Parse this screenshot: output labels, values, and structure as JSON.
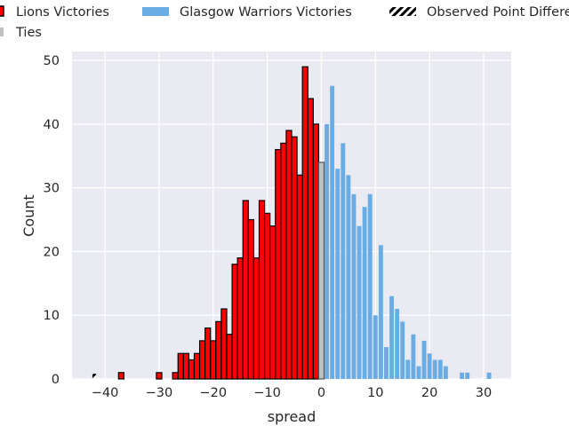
{
  "chart_data": {
    "type": "bar",
    "title": "",
    "xlabel": "spread",
    "ylabel": "Count",
    "xlim": [
      -46.1,
      35.1
    ],
    "ylim": [
      0,
      51.4
    ],
    "xticks": [
      -40,
      -30,
      -20,
      -10,
      0,
      10,
      20,
      30
    ],
    "yticks": [
      0,
      10,
      20,
      30,
      40,
      50
    ],
    "grid": true,
    "legend_placement": "top",
    "series": [
      {
        "name": "Lions Victories",
        "color": "#ff0000",
        "edge": "#000000",
        "x": [
          -37,
          -30,
          -27,
          -26,
          -25,
          -24,
          -23,
          -22,
          -21,
          -20,
          -19,
          -18,
          -17,
          -16,
          -15,
          -14,
          -13,
          -12,
          -11,
          -10,
          -9,
          -8,
          -7,
          -6,
          -5,
          -4,
          -3,
          -2,
          -1
        ],
        "values": [
          1,
          1,
          1,
          4,
          4,
          3,
          4,
          6,
          8,
          6,
          9,
          11,
          7,
          18,
          19,
          28,
          25,
          19,
          28,
          26,
          24,
          36,
          37,
          39,
          38,
          32,
          49,
          44,
          40
        ]
      },
      {
        "name": "Glasgow Warriors Victories",
        "color": "#6aade4",
        "edge": null,
        "x": [
          1,
          2,
          3,
          4,
          5,
          6,
          7,
          8,
          9,
          10,
          11,
          12,
          13,
          14,
          15,
          16,
          17,
          18,
          19,
          20,
          21,
          22,
          23,
          26,
          27,
          31
        ],
        "values": [
          40,
          46,
          33,
          37,
          32,
          29,
          24,
          27,
          29,
          10,
          21,
          5,
          13,
          11,
          9,
          3,
          7,
          2,
          6,
          4,
          3,
          3,
          2,
          1,
          1,
          1
        ]
      },
      {
        "name": "Ties",
        "color": "#c0c0c0",
        "edge": "#555555",
        "x": [
          0
        ],
        "values": [
          34
        ]
      }
    ],
    "observed": {
      "name": "Observed Point Difference",
      "x": -42
    }
  }
}
